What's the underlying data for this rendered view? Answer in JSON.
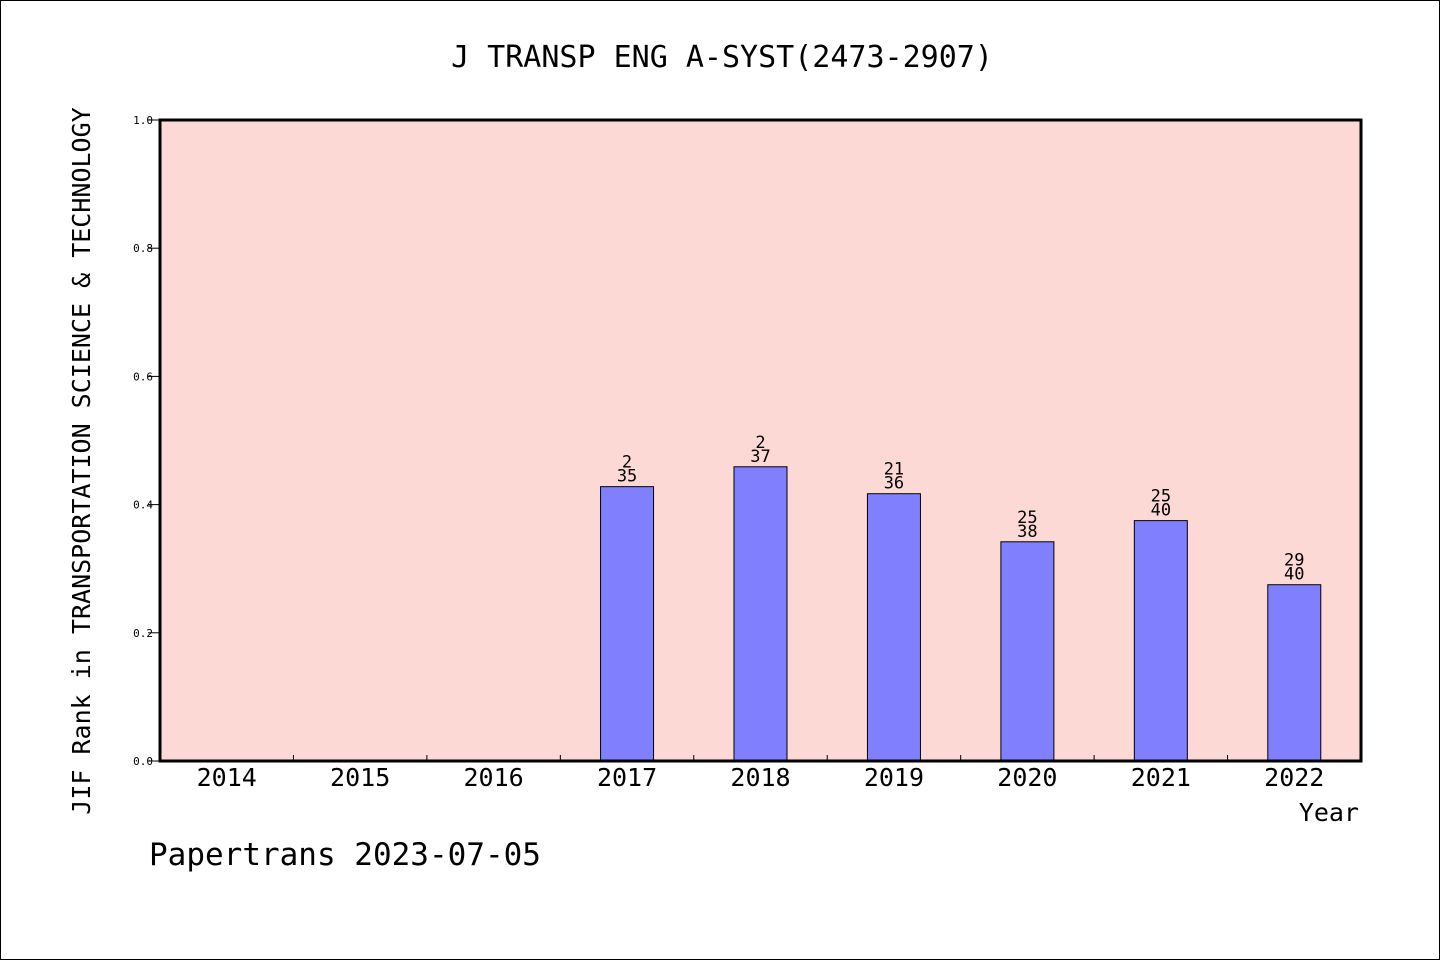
{
  "chart_data": {
    "type": "bar",
    "title": "J TRANSP ENG A-SYST(2473-2907)",
    "ylabel": "JIF Rank in TRANSPORTATION SCIENCE & TECHNOLOGY",
    "xlabel": "Year",
    "ylim": [
      0,
      1.0
    ],
    "yticks": [
      "0.0",
      "0.2",
      "0.4",
      "0.6",
      "0.8",
      "1.0"
    ],
    "categories": [
      "2014",
      "2015",
      "2016",
      "2017",
      "2018",
      "2019",
      "2020",
      "2021",
      "2022"
    ],
    "values": [
      null,
      null,
      null,
      0.428,
      0.459,
      0.417,
      0.342,
      0.375,
      0.275
    ],
    "data_labels": [
      null,
      null,
      null,
      {
        "top": "2",
        "bottom": "35"
      },
      {
        "top": "2",
        "bottom": "37"
      },
      {
        "top": "21",
        "bottom": "36"
      },
      {
        "top": "25",
        "bottom": "38"
      },
      {
        "top": "25",
        "bottom": "40"
      },
      {
        "top": "29",
        "bottom": "40"
      }
    ],
    "grid": false,
    "colors": {
      "plot_background": "#fdd9d6",
      "bar_fill": "#8080ff",
      "bar_stroke": "#000000",
      "axis": "#000000"
    }
  },
  "footer": {
    "source_text": "Papertrans 2023-07-05"
  }
}
